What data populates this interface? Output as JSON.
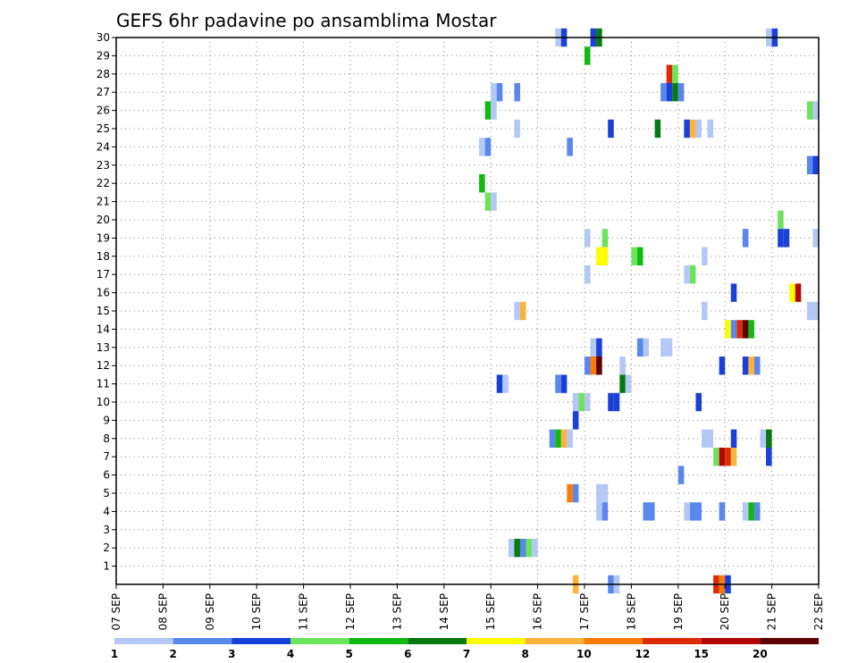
{
  "chart_data": {
    "type": "heatmap",
    "title": "GEFS 6hr padavine po ansamblima Mostar",
    "xlabel": "",
    "ylabel": "",
    "x_ticks": [
      "07 SEP",
      "08 SEP",
      "09 SEP",
      "10 SEP",
      "11 SEP",
      "12 SEP",
      "13 SEP",
      "14 SEP",
      "15 SEP",
      "16 SEP",
      "17 SEP",
      "18 SEP",
      "19 SEP",
      "20 SEP",
      "21 SEP",
      "22 SEP"
    ],
    "y_ticks": [
      1,
      2,
      3,
      4,
      5,
      6,
      7,
      8,
      9,
      10,
      11,
      12,
      13,
      14,
      15,
      16,
      17,
      18,
      19,
      20,
      21,
      22,
      23,
      24,
      25,
      26,
      27,
      28,
      29,
      30
    ],
    "x_unit": "6-hour step from 07 SEP 00",
    "xlim": [
      0,
      60
    ],
    "ylim": [
      0,
      30
    ],
    "grid": true,
    "colorbar": {
      "labels": [
        "1",
        "2",
        "3",
        "4",
        "5",
        "6",
        "7",
        "8",
        "10",
        "12",
        "15",
        "20"
      ],
      "colors": [
        "#b4c8f5",
        "#5a87ec",
        "#1a40d8",
        "#6be45b",
        "#12b912",
        "#067a12",
        "#fdfd00",
        "#fdb33b",
        "#fa7b06",
        "#dc2b06",
        "#b30707",
        "#5e0000"
      ]
    },
    "cells": [
      [
        30,
        37.75,
        0
      ],
      [
        30,
        38.25,
        2
      ],
      [
        30,
        40.75,
        2
      ],
      [
        30,
        41.25,
        5
      ],
      [
        30,
        55.75,
        0
      ],
      [
        30,
        56.25,
        2
      ],
      [
        29,
        40.25,
        4
      ],
      [
        28,
        47.25,
        9
      ],
      [
        28,
        47.75,
        3
      ],
      [
        27,
        32.25,
        0
      ],
      [
        27,
        32.75,
        1
      ],
      [
        27,
        34.25,
        1
      ],
      [
        27,
        46.75,
        1
      ],
      [
        27,
        47.25,
        2
      ],
      [
        27,
        47.75,
        5
      ],
      [
        27,
        48.25,
        1
      ],
      [
        26,
        31.75,
        4
      ],
      [
        26,
        32.25,
        0
      ],
      [
        26,
        59.25,
        3
      ],
      [
        26,
        59.75,
        0
      ],
      [
        25,
        34.25,
        0
      ],
      [
        25,
        42.25,
        2
      ],
      [
        25,
        46.25,
        5
      ],
      [
        25,
        48.75,
        2
      ],
      [
        25,
        49.25,
        7
      ],
      [
        25,
        49.75,
        0
      ],
      [
        25,
        50.75,
        0
      ],
      [
        24,
        31.25,
        0
      ],
      [
        24,
        31.75,
        1
      ],
      [
        24,
        38.75,
        1
      ],
      [
        23,
        59.25,
        1
      ],
      [
        23,
        59.75,
        2
      ],
      [
        22,
        31.25,
        4
      ],
      [
        21,
        31.75,
        3
      ],
      [
        21,
        32.25,
        0
      ],
      [
        20,
        56.75,
        3
      ],
      [
        19,
        40.25,
        0
      ],
      [
        19,
        41.75,
        3
      ],
      [
        19,
        53.75,
        1
      ],
      [
        19,
        56.75,
        2
      ],
      [
        19,
        57.25,
        2
      ],
      [
        19,
        59.75,
        0
      ],
      [
        18,
        41.25,
        6
      ],
      [
        18,
        41.75,
        6
      ],
      [
        18,
        44.25,
        3
      ],
      [
        18,
        44.75,
        4
      ],
      [
        18,
        50.25,
        0
      ],
      [
        17,
        40.25,
        0
      ],
      [
        17,
        48.75,
        0
      ],
      [
        17,
        49.25,
        3
      ],
      [
        16,
        52.75,
        2
      ],
      [
        16,
        57.75,
        6
      ],
      [
        16,
        58.25,
        10
      ],
      [
        15,
        34.25,
        0
      ],
      [
        15,
        34.75,
        7
      ],
      [
        15,
        50.25,
        0
      ],
      [
        15,
        59.25,
        0
      ],
      [
        15,
        59.75,
        0
      ],
      [
        14,
        52.25,
        6
      ],
      [
        14,
        52.75,
        1
      ],
      [
        14,
        53.25,
        9
      ],
      [
        14,
        53.75,
        11
      ],
      [
        14,
        54.25,
        4
      ],
      [
        13,
        40.75,
        0
      ],
      [
        13,
        41.25,
        2
      ],
      [
        13,
        44.75,
        1
      ],
      [
        13,
        45.25,
        0
      ],
      [
        13,
        46.75,
        0
      ],
      [
        13,
        47.25,
        0
      ],
      [
        12,
        40.25,
        1
      ],
      [
        12,
        40.75,
        8
      ],
      [
        12,
        41.25,
        11
      ],
      [
        12,
        43.25,
        0
      ],
      [
        12,
        51.75,
        2
      ],
      [
        12,
        53.75,
        2
      ],
      [
        12,
        54.25,
        7
      ],
      [
        12,
        54.75,
        1
      ],
      [
        11,
        32.75,
        2
      ],
      [
        11,
        33.25,
        0
      ],
      [
        11,
        37.75,
        1
      ],
      [
        11,
        38.25,
        2
      ],
      [
        11,
        43.25,
        5
      ],
      [
        11,
        43.75,
        0
      ],
      [
        10,
        39.25,
        0
      ],
      [
        10,
        39.75,
        3
      ],
      [
        10,
        40.25,
        0
      ],
      [
        10,
        42.25,
        2
      ],
      [
        10,
        42.75,
        2
      ],
      [
        10,
        49.75,
        2
      ],
      [
        9,
        39.25,
        2
      ],
      [
        8,
        37.25,
        1
      ],
      [
        8,
        37.75,
        4
      ],
      [
        8,
        38.25,
        7
      ],
      [
        8,
        38.75,
        0
      ],
      [
        8,
        50.25,
        0
      ],
      [
        8,
        50.75,
        0
      ],
      [
        8,
        52.75,
        2
      ],
      [
        8,
        55.25,
        0
      ],
      [
        8,
        55.75,
        5
      ],
      [
        7,
        51.25,
        3
      ],
      [
        7,
        51.75,
        10
      ],
      [
        7,
        52.25,
        9
      ],
      [
        7,
        52.75,
        7
      ],
      [
        7,
        55.75,
        2
      ],
      [
        6,
        48.25,
        1
      ],
      [
        5,
        38.75,
        8
      ],
      [
        5,
        39.25,
        1
      ],
      [
        5,
        41.25,
        0
      ],
      [
        5,
        41.75,
        0
      ],
      [
        4,
        41.25,
        0
      ],
      [
        4,
        41.75,
        1
      ],
      [
        4,
        45.25,
        1
      ],
      [
        4,
        45.75,
        1
      ],
      [
        4,
        48.75,
        0
      ],
      [
        4,
        49.25,
        1
      ],
      [
        4,
        49.75,
        1
      ],
      [
        4,
        51.75,
        1
      ],
      [
        4,
        53.75,
        0
      ],
      [
        4,
        54.25,
        4
      ],
      [
        4,
        54.75,
        1
      ],
      [
        2,
        33.75,
        0
      ],
      [
        2,
        34.25,
        5
      ],
      [
        2,
        34.75,
        1
      ],
      [
        2,
        35.25,
        3
      ],
      [
        2,
        35.75,
        0
      ],
      [
        0,
        39.25,
        7
      ],
      [
        0,
        42.25,
        1
      ],
      [
        0,
        42.75,
        0
      ],
      [
        0,
        51.25,
        9
      ],
      [
        0,
        51.75,
        8
      ],
      [
        0,
        52.25,
        2
      ]
    ]
  }
}
